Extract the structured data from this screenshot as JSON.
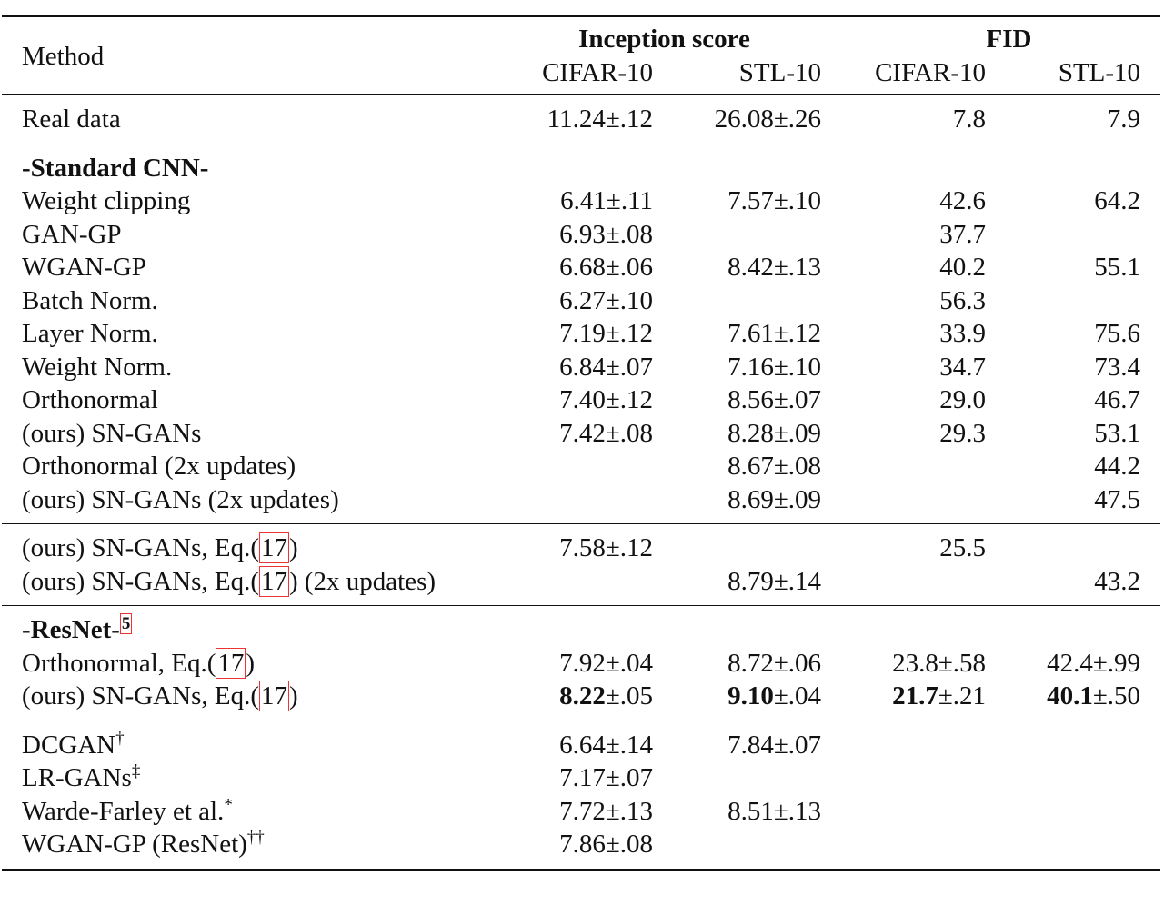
{
  "header": {
    "method": "Method",
    "groups": [
      "Inception score",
      "FID"
    ],
    "columns": [
      "CIFAR-10",
      "STL-10",
      "CIFAR-10",
      "STL-10"
    ]
  },
  "sections": [
    {
      "rows": [
        {
          "method": {
            "text": "Real data"
          },
          "cells": [
            "11.24±.12",
            "26.08±.26",
            "7.8",
            "7.9"
          ]
        }
      ]
    },
    {
      "title": {
        "text": "-Standard CNN-"
      },
      "rows": [
        {
          "method": {
            "text": "Weight clipping"
          },
          "cells": [
            "6.41±.11",
            "7.57±.10",
            "42.6",
            "64.2"
          ]
        },
        {
          "method": {
            "text": "GAN-GP"
          },
          "cells": [
            "6.93±.08",
            null,
            "37.7",
            null
          ]
        },
        {
          "method": {
            "text": "WGAN-GP"
          },
          "cells": [
            "6.68±.06",
            "8.42±.13",
            "40.2",
            "55.1"
          ]
        },
        {
          "method": {
            "text": "Batch Norm."
          },
          "cells": [
            "6.27±.10",
            null,
            "56.3",
            null
          ]
        },
        {
          "method": {
            "text": "Layer Norm."
          },
          "cells": [
            "7.19±.12",
            "7.61±.12",
            "33.9",
            "75.6"
          ]
        },
        {
          "method": {
            "text": "Weight Norm."
          },
          "cells": [
            "6.84±.07",
            "7.16±.10",
            "34.7",
            "73.4"
          ]
        },
        {
          "method": {
            "text": "Orthonormal"
          },
          "cells": [
            "7.40±.12",
            "8.56±.07",
            "29.0",
            "46.7"
          ]
        },
        {
          "method": {
            "text": "(ours) SN-GANs"
          },
          "cells": [
            "7.42±.08",
            "8.28±.09",
            "29.3",
            "53.1"
          ]
        },
        {
          "method": {
            "text": "Orthonormal (2x updates)"
          },
          "cells": [
            null,
            "8.67±.08",
            null,
            "44.2"
          ]
        },
        {
          "method": {
            "text": "(ours) SN-GANs (2x updates)"
          },
          "cells": [
            null,
            "8.69±.09",
            null,
            "47.5"
          ]
        }
      ]
    },
    {
      "rows": [
        {
          "method": {
            "text": "(ours) SN-GANs, Eq.(",
            "ref": "17",
            "after": ")"
          },
          "cells": [
            "7.58±.12",
            null,
            "25.5",
            null
          ]
        },
        {
          "method": {
            "text": "(ours) SN-GANs, Eq.(",
            "ref": "17",
            "after": ") (2x updates)"
          },
          "cells": [
            null,
            "8.79±.14",
            null,
            "43.2"
          ]
        }
      ]
    },
    {
      "title": {
        "text": "-ResNet-",
        "ref": "5"
      },
      "rows": [
        {
          "method": {
            "text": "Orthonormal, Eq.(",
            "ref": "17",
            "after": ")"
          },
          "cells": [
            "7.92±.04",
            "8.72±.06",
            "23.8±.58",
            "42.4±.99"
          ]
        },
        {
          "method": {
            "text": "(ours) SN-GANs, Eq.(",
            "ref": "17",
            "after": ")"
          },
          "cells": [
            {
              "bold": "8.22",
              "text": "±.05"
            },
            {
              "bold": "9.10",
              "text": "±.04"
            },
            {
              "bold": "21.7",
              "text": "±.21"
            },
            {
              "bold": "40.1",
              "text": "±.50"
            }
          ]
        }
      ]
    },
    {
      "rows": [
        {
          "method": {
            "text": "DCGAN",
            "sup": "†"
          },
          "cells": [
            "6.64±.14",
            "7.84±.07",
            null,
            null
          ]
        },
        {
          "method": {
            "text": "LR-GANs",
            "sup": "‡"
          },
          "cells": [
            "7.17±.07",
            null,
            null,
            null
          ]
        },
        {
          "method": {
            "text": "Warde-Farley et al.",
            "sup": "*"
          },
          "cells": [
            "7.72±.13",
            "8.51±.13",
            null,
            null
          ]
        },
        {
          "method": {
            "text": "WGAN-GP (ResNet)",
            "sup": "††"
          },
          "cells": [
            "7.86±.08",
            null,
            null,
            null
          ]
        }
      ]
    }
  ]
}
